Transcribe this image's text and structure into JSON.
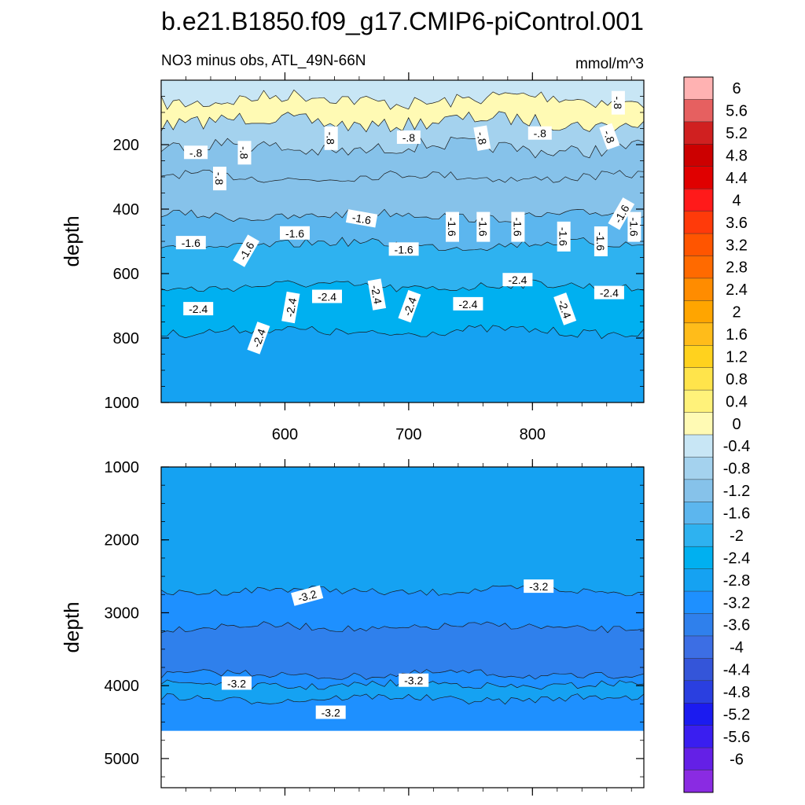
{
  "chart_data": {
    "type": "contour",
    "title": "b.e21.B1850.f09_g17.CMIP6-piControl.001",
    "subtitle_left": "NO3 minus obs, ATL_49N-66N",
    "units": "mmol/m^3",
    "ylabel": "depth",
    "xlim": [
      500,
      890
    ],
    "x_ticks": [
      600,
      700,
      800
    ],
    "panels": [
      {
        "name": "upper",
        "ylim": [
          0,
          1000
        ],
        "y_ticks": [
          200,
          400,
          600,
          800,
          1000
        ],
        "bands": [
          {
            "y0": 0,
            "y1": 60,
            "value": -0.4
          },
          {
            "y0": 60,
            "y1": 130,
            "value": 0.2
          },
          {
            "y0": 130,
            "y1": 210,
            "value": -0.6
          },
          {
            "y0": 210,
            "y1": 300,
            "value": -1.0
          },
          {
            "y0": 300,
            "y1": 420,
            "value": -1.2
          },
          {
            "y0": 420,
            "y1": 510,
            "value": -1.6
          },
          {
            "y0": 510,
            "y1": 640,
            "value": -2.0
          },
          {
            "y0": 640,
            "y1": 780,
            "value": -2.4
          },
          {
            "y0": 780,
            "y1": 1000,
            "value": -2.8
          }
        ],
        "contour_labels": [
          {
            "text": "-.8",
            "x": 528,
            "y": 225,
            "rot": 0
          },
          {
            "text": "-.8",
            "x": 567,
            "y": 225,
            "rot": 90
          },
          {
            "text": "-.8",
            "x": 547,
            "y": 305,
            "rot": 90
          },
          {
            "text": "-.8",
            "x": 637,
            "y": 180,
            "rot": 90
          },
          {
            "text": "-.8",
            "x": 700,
            "y": 178,
            "rot": 0
          },
          {
            "text": "-.8",
            "x": 759,
            "y": 180,
            "rot": 80
          },
          {
            "text": "-.8",
            "x": 806,
            "y": 165,
            "rot": 0
          },
          {
            "text": "-.8",
            "x": 862,
            "y": 175,
            "rot": 70
          },
          {
            "text": "-.8",
            "x": 869,
            "y": 70,
            "rot": 90
          },
          {
            "text": "-1.6",
            "x": 524,
            "y": 505,
            "rot": 0
          },
          {
            "text": "-1.6",
            "x": 569,
            "y": 530,
            "rot": -60
          },
          {
            "text": "-1.6",
            "x": 608,
            "y": 475,
            "rot": 0
          },
          {
            "text": "-1.6",
            "x": 662,
            "y": 430,
            "rot": 10
          },
          {
            "text": "-1.6",
            "x": 696,
            "y": 525,
            "rot": 0
          },
          {
            "text": "-1.6",
            "x": 735,
            "y": 455,
            "rot": 90
          },
          {
            "text": "-1.6",
            "x": 760,
            "y": 455,
            "rot": 90
          },
          {
            "text": "-1.6",
            "x": 788,
            "y": 455,
            "rot": 90
          },
          {
            "text": "-1.6",
            "x": 825,
            "y": 485,
            "rot": 90
          },
          {
            "text": "-1.6",
            "x": 855,
            "y": 500,
            "rot": 90
          },
          {
            "text": "-1.6",
            "x": 882,
            "y": 455,
            "rot": 90
          },
          {
            "text": "-1.6",
            "x": 872,
            "y": 415,
            "rot": -60
          },
          {
            "text": "-2.4",
            "x": 530,
            "y": 710,
            "rot": 0
          },
          {
            "text": "-2.4",
            "x": 579,
            "y": 800,
            "rot": -70
          },
          {
            "text": "-2.4",
            "x": 605,
            "y": 705,
            "rot": -80
          },
          {
            "text": "-2.4",
            "x": 634,
            "y": 672,
            "rot": 0
          },
          {
            "text": "-2.4",
            "x": 674,
            "y": 665,
            "rot": 80
          },
          {
            "text": "-2.4",
            "x": 701,
            "y": 702,
            "rot": -70
          },
          {
            "text": "-2.4",
            "x": 748,
            "y": 695,
            "rot": 0
          },
          {
            "text": "-2.4",
            "x": 788,
            "y": 620,
            "rot": 0
          },
          {
            "text": "-2.4",
            "x": 826,
            "y": 710,
            "rot": 70
          },
          {
            "text": "-2.4",
            "x": 862,
            "y": 660,
            "rot": 0
          }
        ]
      },
      {
        "name": "lower",
        "ylim": [
          1000,
          5400
        ],
        "y_ticks": [
          1000,
          2000,
          3000,
          4000,
          5000
        ],
        "valid_max_depth": 4620,
        "bands": [
          {
            "y0": 1000,
            "y1": 2700,
            "value": -2.8
          },
          {
            "y0": 2700,
            "y1": 3200,
            "value": -3.2
          },
          {
            "y0": 3200,
            "y1": 3850,
            "value": -3.6
          },
          {
            "y0": 3850,
            "y1": 3990,
            "value": -3.2
          },
          {
            "y0": 3990,
            "y1": 4180,
            "value": -2.8
          },
          {
            "y0": 4180,
            "y1": 4620,
            "value": -3.2
          }
        ],
        "contour_labels": [
          {
            "text": "-3.2",
            "x": 618,
            "y": 2770,
            "rot": -15
          },
          {
            "text": "-3.2",
            "x": 805,
            "y": 2640,
            "rot": 0
          },
          {
            "text": "-3.2",
            "x": 561,
            "y": 3970,
            "rot": 0
          },
          {
            "text": "-3.2",
            "x": 704,
            "y": 3930,
            "rot": 0
          },
          {
            "text": "-3.2",
            "x": 637,
            "y": 4370,
            "rot": 0
          }
        ]
      }
    ],
    "colorbar": {
      "levels": [
        "6",
        "5.6",
        "5.2",
        "4.8",
        "4.4",
        "4",
        "3.6",
        "3.2",
        "2.8",
        "2.4",
        "2",
        "1.6",
        "1.2",
        "0.8",
        "0.4",
        "0",
        "-0.4",
        "-0.8",
        "-1.2",
        "-1.6",
        "-2",
        "-2.4",
        "-2.8",
        "-3.2",
        "-3.6",
        "-4",
        "-4.4",
        "-4.8",
        "-5.2",
        "-5.6",
        "-6"
      ],
      "colors": [
        "#ffb2b2",
        "#e66060",
        "#d02020",
        "#cc0000",
        "#e00000",
        "#ff1a1a",
        "#ff3a0a",
        "#ff5500",
        "#ff6a00",
        "#ff8c00",
        "#ffa500",
        "#ffbc1a",
        "#ffd21e",
        "#ffe44b",
        "#fff27a",
        "#fffab4",
        "#c8e6f5",
        "#a4d2ee",
        "#86c2ea",
        "#5cb6ee",
        "#2eb2f0",
        "#00b0f0",
        "#15a2f2",
        "#1e90ff",
        "#2f80ec",
        "#3c6ee4",
        "#3455d9",
        "#2a3fe0",
        "#1b1bf0",
        "#3a1ef0",
        "#6420e6",
        "#8a2be2"
      ]
    }
  }
}
